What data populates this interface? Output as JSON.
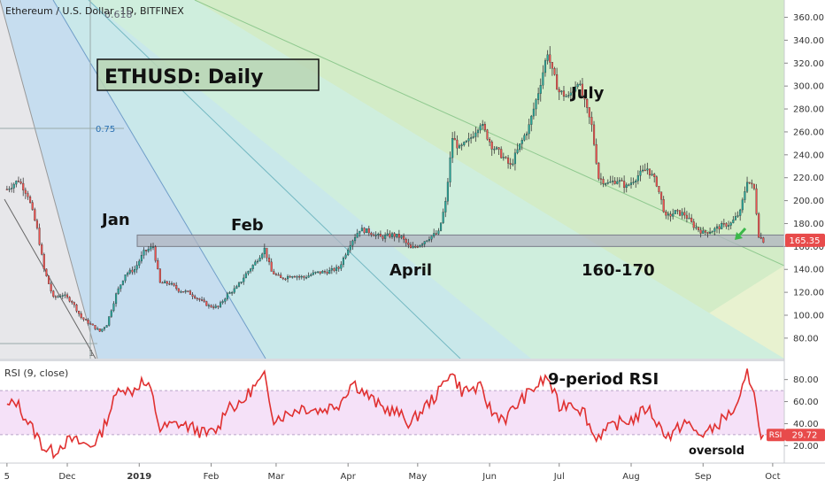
{
  "header": {
    "symbol_label": "Ethereum / U.S. Dollar, 1D, BITFINEX"
  },
  "colors": {
    "bull": "#26a69a",
    "bear": "#ef5350",
    "rsi_line": "#e03030",
    "rsi_band": "#f3d9f6",
    "support_band": "#b0b4c0",
    "price_badge": "#e84b4b"
  },
  "chart_data": [
    {
      "type": "candlestick",
      "title": "ETHUSD: Daily",
      "y_ticks": [
        80,
        100,
        120,
        140,
        160,
        180,
        200,
        220,
        240,
        260,
        280,
        300,
        320,
        340,
        360
      ],
      "ylim": [
        66,
        372
      ],
      "x_ticks": [
        "5",
        "Dec",
        "2019",
        "Feb",
        "Mar",
        "Apr",
        "May",
        "Jun",
        "Jul",
        "Aug",
        "Sep",
        "Oct"
      ],
      "x_tick_dates": [
        "2018-11-05",
        "2018-12-01",
        "2019-01-01",
        "2019-02-01",
        "2019-03-01",
        "2019-04-01",
        "2019-05-01",
        "2019-06-01",
        "2019-07-01",
        "2019-08-01",
        "2019-09-01",
        "2019-10-01"
      ],
      "last_price": "165.35",
      "price_path": [
        [
          "2018-11-05",
          210
        ],
        [
          "2018-11-10",
          218
        ],
        [
          "2018-11-14",
          205
        ],
        [
          "2018-11-18",
          175
        ],
        [
          "2018-11-21",
          140
        ],
        [
          "2018-11-25",
          115
        ],
        [
          "2018-11-29",
          118
        ],
        [
          "2018-12-03",
          112
        ],
        [
          "2018-12-07",
          98
        ],
        [
          "2018-12-11",
          92
        ],
        [
          "2018-12-15",
          86
        ],
        [
          "2018-12-18",
          92
        ],
        [
          "2018-12-22",
          118
        ],
        [
          "2018-12-26",
          136
        ],
        [
          "2018-12-30",
          140
        ],
        [
          "2019-01-03",
          155
        ],
        [
          "2019-01-07",
          160
        ],
        [
          "2019-01-10",
          128
        ],
        [
          "2019-01-14",
          128
        ],
        [
          "2019-01-18",
          122
        ],
        [
          "2019-01-22",
          120
        ],
        [
          "2019-01-26",
          115
        ],
        [
          "2019-01-31",
          108
        ],
        [
          "2019-02-04",
          107
        ],
        [
          "2019-02-08",
          118
        ],
        [
          "2019-02-12",
          124
        ],
        [
          "2019-02-16",
          136
        ],
        [
          "2019-02-20",
          146
        ],
        [
          "2019-02-24",
          158
        ],
        [
          "2019-02-27",
          138
        ],
        [
          "2019-03-03",
          132
        ],
        [
          "2019-03-08",
          135
        ],
        [
          "2019-03-13",
          133
        ],
        [
          "2019-03-18",
          137
        ],
        [
          "2019-03-23",
          138
        ],
        [
          "2019-03-28",
          141
        ],
        [
          "2019-04-02",
          163
        ],
        [
          "2019-04-06",
          175
        ],
        [
          "2019-04-10",
          173
        ],
        [
          "2019-04-15",
          168
        ],
        [
          "2019-04-20",
          170
        ],
        [
          "2019-04-24",
          168
        ],
        [
          "2019-04-28",
          158
        ],
        [
          "2019-05-02",
          162
        ],
        [
          "2019-05-06",
          168
        ],
        [
          "2019-05-10",
          172
        ],
        [
          "2019-05-13",
          198
        ],
        [
          "2019-05-16",
          255
        ],
        [
          "2019-05-19",
          245
        ],
        [
          "2019-05-23",
          252
        ],
        [
          "2019-05-28",
          268
        ],
        [
          "2019-06-02",
          248
        ],
        [
          "2019-06-06",
          240
        ],
        [
          "2019-06-10",
          230
        ],
        [
          "2019-06-14",
          248
        ],
        [
          "2019-06-18",
          265
        ],
        [
          "2019-06-22",
          295
        ],
        [
          "2019-06-26",
          330
        ],
        [
          "2019-06-28",
          312
        ],
        [
          "2019-07-01",
          295
        ],
        [
          "2019-07-05",
          290
        ],
        [
          "2019-07-09",
          305
        ],
        [
          "2019-07-12",
          285
        ],
        [
          "2019-07-15",
          265
        ],
        [
          "2019-07-18",
          220
        ],
        [
          "2019-07-22",
          215
        ],
        [
          "2019-07-26",
          218
        ],
        [
          "2019-07-30",
          212
        ],
        [
          "2019-08-04",
          222
        ],
        [
          "2019-08-08",
          228
        ],
        [
          "2019-08-12",
          215
        ],
        [
          "2019-08-16",
          185
        ],
        [
          "2019-08-20",
          190
        ],
        [
          "2019-08-24",
          188
        ],
        [
          "2019-08-28",
          178
        ],
        [
          "2019-09-01",
          172
        ],
        [
          "2019-09-05",
          174
        ],
        [
          "2019-09-09",
          178
        ],
        [
          "2019-09-13",
          180
        ],
        [
          "2019-09-17",
          190
        ],
        [
          "2019-09-20",
          218
        ],
        [
          "2019-09-23",
          210
        ],
        [
          "2019-09-25",
          170
        ],
        [
          "2019-09-27",
          165
        ]
      ],
      "support_zone": [
        160,
        170
      ],
      "annotations": [
        "Jan",
        "Feb",
        "April",
        "July",
        "160-170"
      ],
      "fib_label": "0.75",
      "fib_marker": "1",
      "fib_top_text": "0.618"
    },
    {
      "type": "line",
      "title": "RSI (9, close)",
      "y_ticks": [
        20,
        40,
        60,
        80
      ],
      "ylim": [
        5,
        95
      ],
      "band": [
        30,
        70
      ],
      "last_value": "29.72",
      "badge_label": "RSI",
      "annotations": [
        "9-period RSI",
        "oversold"
      ],
      "values": [
        [
          "2018-11-05",
          55
        ],
        [
          "2018-11-09",
          60
        ],
        [
          "2018-11-13",
          45
        ],
        [
          "2018-11-17",
          32
        ],
        [
          "2018-11-21",
          18
        ],
        [
          "2018-11-25",
          14
        ],
        [
          "2018-11-29",
          22
        ],
        [
          "2018-12-03",
          25
        ],
        [
          "2018-12-07",
          22
        ],
        [
          "2018-12-11",
          20
        ],
        [
          "2018-12-15",
          28
        ],
        [
          "2018-12-20",
          55
        ],
        [
          "2018-12-24",
          75
        ],
        [
          "2018-12-28",
          68
        ],
        [
          "2019-01-02",
          78
        ],
        [
          "2019-01-06",
          70
        ],
        [
          "2019-01-10",
          35
        ],
        [
          "2019-01-14",
          38
        ],
        [
          "2019-01-18",
          40
        ],
        [
          "2019-01-24",
          36
        ],
        [
          "2019-01-30",
          30
        ],
        [
          "2019-02-04",
          35
        ],
        [
          "2019-02-08",
          58
        ],
        [
          "2019-02-13",
          55
        ],
        [
          "2019-02-18",
          70
        ],
        [
          "2019-02-24",
          82
        ],
        [
          "2019-02-28",
          45
        ],
        [
          "2019-03-05",
          48
        ],
        [
          "2019-03-12",
          55
        ],
        [
          "2019-03-20",
          52
        ],
        [
          "2019-03-28",
          58
        ],
        [
          "2019-04-03",
          78
        ],
        [
          "2019-04-08",
          68
        ],
        [
          "2019-04-15",
          55
        ],
        [
          "2019-04-22",
          50
        ],
        [
          "2019-04-28",
          40
        ],
        [
          "2019-05-04",
          55
        ],
        [
          "2019-05-10",
          68
        ],
        [
          "2019-05-15",
          88
        ],
        [
          "2019-05-20",
          70
        ],
        [
          "2019-05-28",
          72
        ],
        [
          "2019-06-02",
          50
        ],
        [
          "2019-06-08",
          45
        ],
        [
          "2019-06-14",
          60
        ],
        [
          "2019-06-20",
          72
        ],
        [
          "2019-06-26",
          82
        ],
        [
          "2019-07-01",
          55
        ],
        [
          "2019-07-06",
          60
        ],
        [
          "2019-07-12",
          50
        ],
        [
          "2019-07-16",
          28
        ],
        [
          "2019-07-20",
          32
        ],
        [
          "2019-07-26",
          40
        ],
        [
          "2019-08-03",
          45
        ],
        [
          "2019-08-08",
          55
        ],
        [
          "2019-08-14",
          35
        ],
        [
          "2019-08-18",
          28
        ],
        [
          "2019-08-24",
          42
        ],
        [
          "2019-08-30",
          30
        ],
        [
          "2019-09-04",
          33
        ],
        [
          "2019-09-10",
          45
        ],
        [
          "2019-09-16",
          55
        ],
        [
          "2019-09-20",
          85
        ],
        [
          "2019-09-23",
          72
        ],
        [
          "2019-09-25",
          35
        ],
        [
          "2019-09-27",
          29.72
        ]
      ]
    }
  ]
}
